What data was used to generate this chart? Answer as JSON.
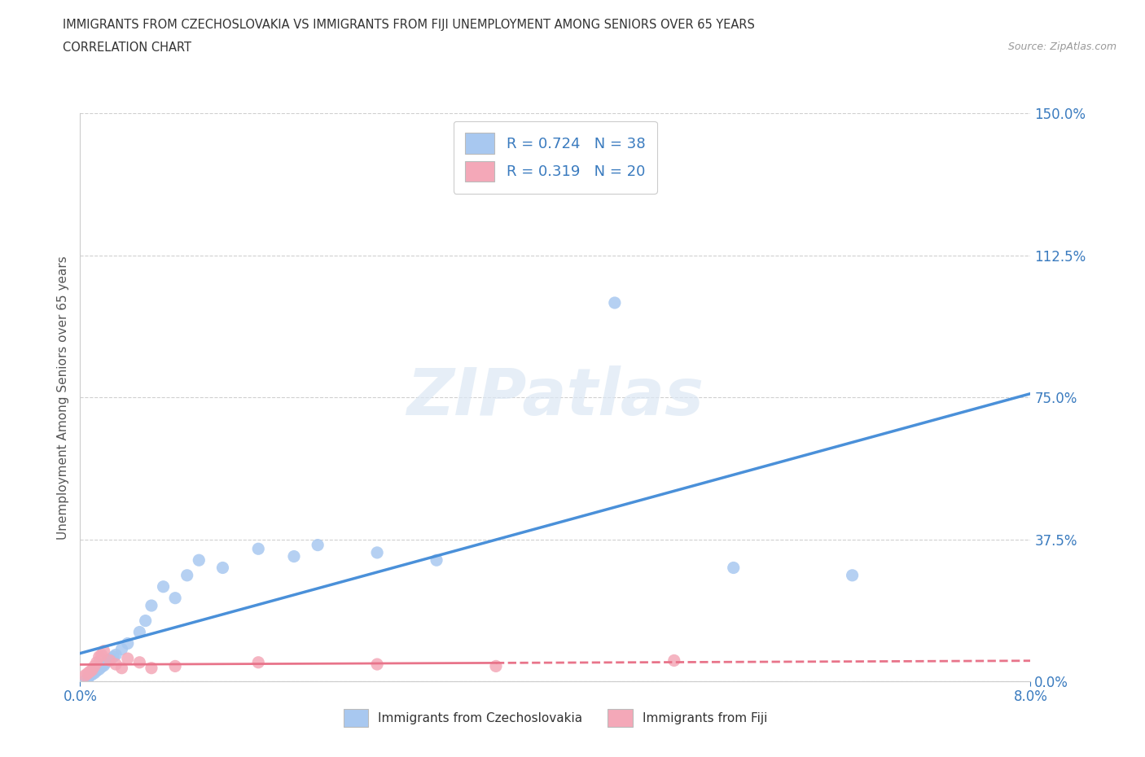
{
  "title_line1": "IMMIGRANTS FROM CZECHOSLOVAKIA VS IMMIGRANTS FROM FIJI UNEMPLOYMENT AMONG SENIORS OVER 65 YEARS",
  "title_line2": "CORRELATION CHART",
  "source": "Source: ZipAtlas.com",
  "ylabel": "Unemployment Among Seniors over 65 years",
  "x_min": 0.0,
  "x_max": 8.0,
  "y_min": 0.0,
  "y_max": 150.0,
  "y_ticks": [
    0.0,
    37.5,
    75.0,
    112.5,
    150.0
  ],
  "czech_R": 0.724,
  "czech_N": 38,
  "fiji_R": 0.319,
  "fiji_N": 20,
  "czech_scatter_color": "#a8c8f0",
  "fiji_scatter_color": "#f4a8b8",
  "czech_line_color": "#4a90d9",
  "fiji_line_color": "#e8748a",
  "legend_text_color": "#3a7bbf",
  "tick_color": "#3a7bbf",
  "grid_color": "#d0d0d0",
  "watermark_color": "#dce8f4",
  "background_color": "#ffffff",
  "czech_x": [
    0.05,
    0.07,
    0.08,
    0.09,
    0.1,
    0.11,
    0.12,
    0.13,
    0.14,
    0.15,
    0.16,
    0.17,
    0.18,
    0.19,
    0.2,
    0.22,
    0.24,
    0.26,
    0.28,
    0.3,
    0.35,
    0.4,
    0.5,
    0.55,
    0.6,
    0.7,
    0.8,
    0.9,
    1.0,
    1.2,
    1.5,
    1.8,
    2.0,
    2.5,
    3.0,
    4.5,
    5.5,
    6.5
  ],
  "czech_y": [
    0.5,
    1.0,
    1.5,
    2.0,
    1.8,
    2.5,
    2.2,
    3.0,
    2.8,
    3.5,
    3.2,
    4.0,
    3.8,
    4.5,
    4.2,
    5.0,
    5.5,
    6.0,
    6.5,
    7.0,
    8.5,
    10.0,
    13.0,
    16.0,
    20.0,
    25.0,
    22.0,
    28.0,
    32.0,
    30.0,
    35.0,
    33.0,
    36.0,
    34.0,
    32.0,
    100.0,
    30.0,
    28.0
  ],
  "fiji_x": [
    0.04,
    0.06,
    0.08,
    0.1,
    0.12,
    0.14,
    0.16,
    0.18,
    0.2,
    0.25,
    0.3,
    0.35,
    0.4,
    0.5,
    0.6,
    0.8,
    1.5,
    2.5,
    3.5,
    5.0
  ],
  "fiji_y": [
    1.5,
    2.0,
    2.5,
    3.0,
    4.0,
    5.0,
    6.5,
    7.0,
    8.0,
    5.5,
    4.5,
    3.5,
    6.0,
    5.0,
    3.5,
    4.0,
    5.0,
    4.5,
    4.0,
    5.5
  ]
}
